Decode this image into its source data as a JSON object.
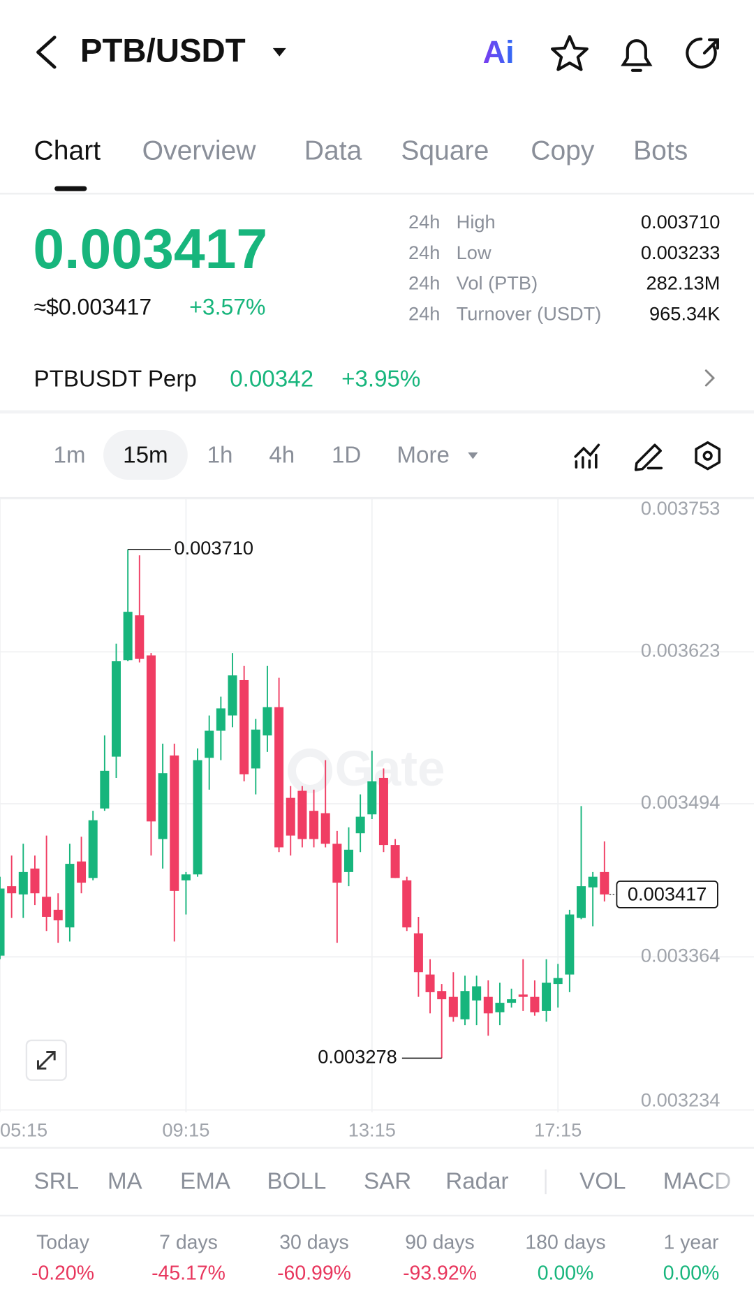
{
  "header": {
    "pair": "PTB/USDT",
    "ai_label": "Ai"
  },
  "tabs": [
    "Chart",
    "Overview",
    "Data",
    "Square",
    "Copy",
    "Bots"
  ],
  "price": {
    "last": "0.003417",
    "usd": "≈$0.003417",
    "change": "+3.57%"
  },
  "stats": [
    {
      "period": "24h",
      "name": "High",
      "value": "0.003710"
    },
    {
      "period": "24h",
      "name": "Low",
      "value": "0.003233"
    },
    {
      "period": "24h",
      "name": "Vol (PTB)",
      "value": "282.13M"
    },
    {
      "period": "24h",
      "name": "Turnover (USDT)",
      "value": "965.34K"
    }
  ],
  "perp": {
    "name": "PTBUSDT Perp",
    "price": "0.00342",
    "change": "+3.95%"
  },
  "intervals": [
    "1m",
    "15m",
    "1h",
    "4h",
    "1D",
    "More"
  ],
  "watermark": "Gate",
  "chart_data": {
    "type": "candlestick",
    "categories": [
      "05:15",
      null,
      null,
      null,
      null,
      null,
      null,
      null,
      null,
      null,
      null,
      null,
      null,
      null,
      null,
      null,
      "09:15",
      null,
      null,
      null,
      null,
      null,
      null,
      null,
      null,
      null,
      null,
      null,
      null,
      null,
      null,
      null,
      "13:15",
      null,
      null,
      null,
      null,
      null,
      null,
      null,
      null,
      null,
      null,
      null,
      null,
      null,
      null,
      null,
      "17:15",
      null,
      null,
      null,
      null
    ],
    "open": [
      0.003365,
      0.003424,
      0.003417,
      0.003439,
      0.003415,
      0.003404,
      0.003389,
      0.003445,
      0.003431,
      0.00349,
      0.003534,
      0.003616,
      0.003654,
      0.00362,
      0.003464,
      0.003535,
      0.003429,
      0.003434,
      0.003533,
      0.003556,
      0.003569,
      0.003599,
      0.003524,
      0.003552,
      0.003576,
      0.003499,
      0.003505,
      0.003488,
      0.003486,
      0.00346,
      0.003436,
      0.003469,
      0.003485,
      0.003516,
      0.003459,
      0.003429,
      0.003384,
      0.003349,
      0.003335,
      0.00333,
      0.003311,
      0.003327,
      0.00333,
      0.003317,
      0.003325,
      0.003332,
      0.00333,
      0.003318,
      0.003341,
      0.003349,
      0.003397,
      0.003423,
      0.003436
    ],
    "high": [
      0.003432,
      0.00345,
      0.00346,
      0.00345,
      0.003467,
      0.003418,
      0.00346,
      0.003466,
      0.003488,
      0.003552,
      0.00363,
      0.00371,
      0.003705,
      0.003622,
      0.003545,
      0.003545,
      0.003436,
      0.003541,
      0.003569,
      0.003585,
      0.003622,
      0.003611,
      0.003566,
      0.003611,
      0.003601,
      0.003509,
      0.003509,
      0.003506,
      0.003531,
      0.003471,
      0.003474,
      0.003502,
      0.003539,
      0.003524,
      0.003464,
      0.003432,
      0.003398,
      0.003362,
      0.003341,
      0.003351,
      0.003348,
      0.003348,
      0.003344,
      0.003342,
      0.003337,
      0.003362,
      0.003344,
      0.003362,
      0.003358,
      0.003404,
      0.003492,
      0.003436,
      0.003462
    ],
    "low": [
      0.003362,
      0.003397,
      0.003397,
      0.003408,
      0.003386,
      0.003376,
      0.003377,
      0.003418,
      0.003429,
      0.003488,
      0.003516,
      0.003615,
      0.003614,
      0.00345,
      0.003439,
      0.003377,
      0.0034,
      0.003432,
      0.003506,
      0.003531,
      0.003559,
      0.003513,
      0.003502,
      0.003538,
      0.003453,
      0.00345,
      0.003457,
      0.003457,
      0.003457,
      0.003376,
      0.003424,
      0.003453,
      0.003481,
      0.003453,
      0.003431,
      0.003386,
      0.00333,
      0.003316,
      0.003278,
      0.003309,
      0.003306,
      0.003306,
      0.003297,
      0.003306,
      0.003321,
      0.003318,
      0.003314,
      0.003309,
      0.003321,
      0.003334,
      0.003396,
      0.00339,
      0.003411
    ],
    "close": [
      0.003422,
      0.003418,
      0.003436,
      0.003418,
      0.003398,
      0.003395,
      0.003443,
      0.003427,
      0.00348,
      0.003522,
      0.003615,
      0.003657,
      0.003617,
      0.003479,
      0.00352,
      0.00342,
      0.003434,
      0.003531,
      0.003556,
      0.003575,
      0.003603,
      0.003519,
      0.003557,
      0.003576,
      0.003457,
      0.003467,
      0.003464,
      0.003464,
      0.00346,
      0.003427,
      0.003455,
      0.003483,
      0.003513,
      0.003459,
      0.003431,
      0.003389,
      0.003351,
      0.003334,
      0.003328,
      0.003313,
      0.003335,
      0.003339,
      0.003316,
      0.003325,
      0.003328,
      0.00333,
      0.003317,
      0.003342,
      0.003346,
      0.0034,
      0.003424,
      0.003432,
      0.003417
    ],
    "up_color": "#17b57c",
    "down_color": "#f03d63",
    "ylim": [
      0.003232,
      0.003753
    ],
    "yticks": [
      0.003753,
      0.003623,
      0.003494,
      0.003364,
      0.003234
    ],
    "grid": true,
    "high_label": {
      "value": 0.00371,
      "label": "0.003710"
    },
    "low_label": 0.003278,
    "last_price": 0.003417
  },
  "indicators": [
    "SRL",
    "MA",
    "EMA",
    "BOLL",
    "SAR",
    "Radar",
    "VOL",
    "MACD"
  ],
  "performance": [
    {
      "period": "Today",
      "change": "-0.20%"
    },
    {
      "period": "7 days",
      "change": "-45.17%"
    },
    {
      "period": "30 days",
      "change": "-60.99%"
    },
    {
      "period": "90 days",
      "change": "-93.92%"
    },
    {
      "period": "180 days",
      "change": "0.00%"
    },
    {
      "period": "1 year",
      "change": "0.00%"
    }
  ]
}
